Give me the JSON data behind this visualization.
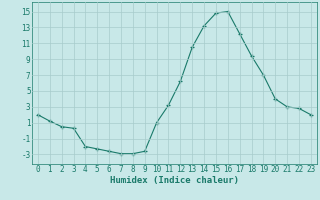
{
  "x": [
    0,
    1,
    2,
    3,
    4,
    5,
    6,
    7,
    8,
    9,
    10,
    11,
    12,
    13,
    14,
    15,
    16,
    17,
    18,
    19,
    20,
    21,
    22,
    23
  ],
  "y": [
    2.0,
    1.2,
    0.5,
    0.3,
    -2.0,
    -2.3,
    -2.6,
    -2.9,
    -2.9,
    -2.6,
    1.0,
    3.2,
    6.2,
    10.5,
    13.2,
    14.8,
    15.0,
    12.2,
    9.4,
    7.0,
    4.0,
    3.0,
    2.8,
    2.0
  ],
  "line_color": "#1a7a6a",
  "marker": "+",
  "background_color": "#c8e8e8",
  "grid_color": "#a8cccc",
  "xlabel": "Humidex (Indice chaleur)",
  "yticks": [
    -3,
    -1,
    1,
    3,
    5,
    7,
    9,
    11,
    13,
    15
  ],
  "ylim": [
    -4.2,
    16.2
  ],
  "xlim": [
    -0.5,
    23.5
  ],
  "xticks": [
    0,
    1,
    2,
    3,
    4,
    5,
    6,
    7,
    8,
    9,
    10,
    11,
    12,
    13,
    14,
    15,
    16,
    17,
    18,
    19,
    20,
    21,
    22,
    23
  ]
}
